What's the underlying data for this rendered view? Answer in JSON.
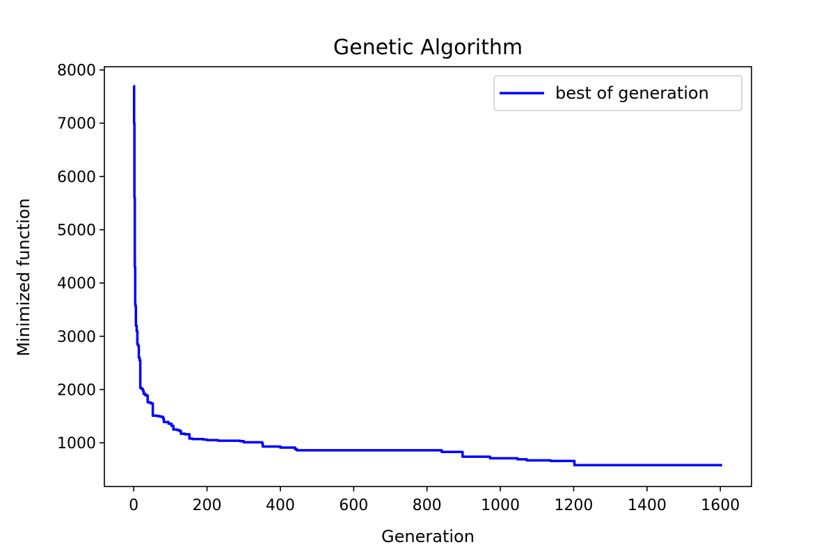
{
  "chart_data": {
    "type": "line",
    "title": "Genetic Algorithm",
    "xlabel": "Generation",
    "ylabel": "Minimized function",
    "xlim": [
      -80,
      1685
    ],
    "ylim": [
      180,
      8060
    ],
    "xticks": [
      0,
      200,
      400,
      600,
      800,
      1000,
      1200,
      1400,
      1600
    ],
    "yticks": [
      1000,
      2000,
      3000,
      4000,
      5000,
      6000,
      7000,
      8000
    ],
    "grid": false,
    "legend_position": "top-right",
    "series": [
      {
        "name": "best of generation",
        "color": "#0000ff",
        "step": true,
        "points": [
          [
            0,
            7700
          ],
          [
            1,
            7000
          ],
          [
            2,
            5600
          ],
          [
            3,
            4300
          ],
          [
            4,
            3600
          ],
          [
            5,
            3560
          ],
          [
            6,
            3200
          ],
          [
            8,
            3100
          ],
          [
            10,
            2850
          ],
          [
            12,
            2820
          ],
          [
            14,
            2600
          ],
          [
            16,
            2550
          ],
          [
            18,
            2030
          ],
          [
            22,
            2010
          ],
          [
            25,
            1980
          ],
          [
            27,
            1920
          ],
          [
            32,
            1890
          ],
          [
            38,
            1760
          ],
          [
            46,
            1740
          ],
          [
            52,
            1510
          ],
          [
            65,
            1500
          ],
          [
            72,
            1490
          ],
          [
            80,
            1460
          ],
          [
            82,
            1390
          ],
          [
            95,
            1360
          ],
          [
            103,
            1320
          ],
          [
            108,
            1250
          ],
          [
            118,
            1240
          ],
          [
            125,
            1220
          ],
          [
            129,
            1170
          ],
          [
            140,
            1160
          ],
          [
            152,
            1080
          ],
          [
            160,
            1070
          ],
          [
            190,
            1060
          ],
          [
            200,
            1050
          ],
          [
            230,
            1040
          ],
          [
            290,
            1030
          ],
          [
            300,
            1010
          ],
          [
            350,
            990
          ],
          [
            352,
            930
          ],
          [
            400,
            910
          ],
          [
            440,
            880
          ],
          [
            445,
            860
          ],
          [
            835,
            860
          ],
          [
            840,
            830
          ],
          [
            895,
            830
          ],
          [
            897,
            740
          ],
          [
            970,
            740
          ],
          [
            972,
            710
          ],
          [
            1045,
            710
          ],
          [
            1047,
            690
          ],
          [
            1070,
            690
          ],
          [
            1072,
            670
          ],
          [
            1135,
            670
          ],
          [
            1137,
            660
          ],
          [
            1200,
            660
          ],
          [
            1202,
            580
          ],
          [
            1605,
            580
          ]
        ]
      }
    ]
  }
}
